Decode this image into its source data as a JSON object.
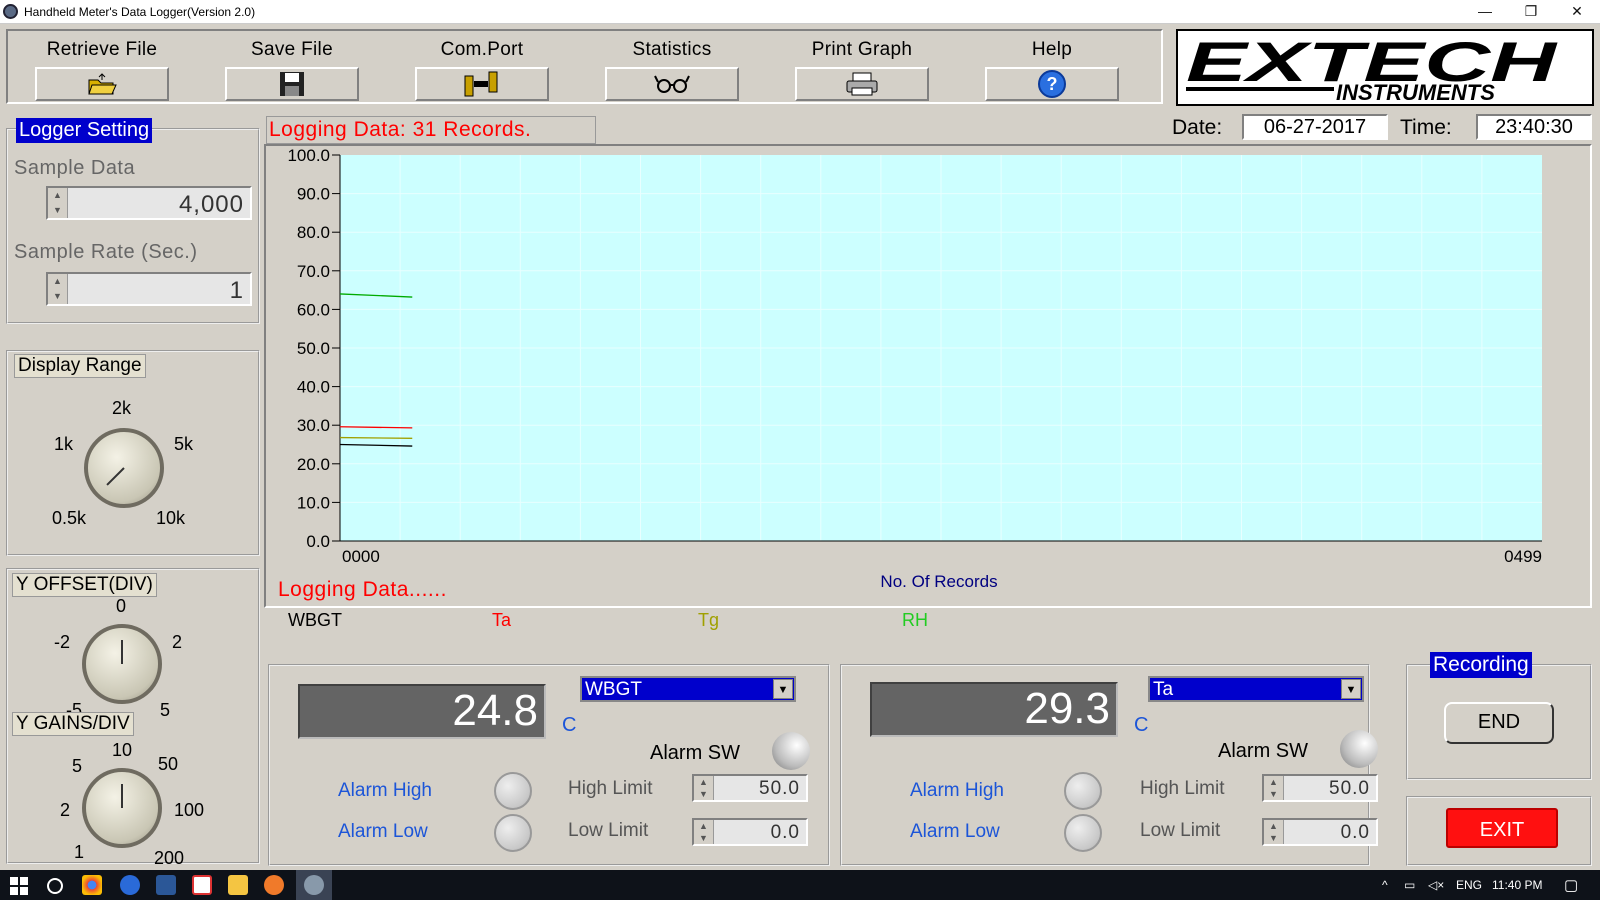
{
  "window": {
    "title": "Handheld Meter's Data Logger(Version 2.0)",
    "minimize": "—",
    "restore": "❐",
    "close": "✕"
  },
  "toolbar": {
    "retrieve": "Retrieve File",
    "save": "Save File",
    "comport": "Com.Port",
    "statistics": "Statistics",
    "print": "Print Graph",
    "help": "Help"
  },
  "logo": {
    "brand": "EXTECH",
    "sub": "INSTRUMENTS"
  },
  "logger": {
    "title": "Logger Setting",
    "sample_data_label": "Sample Data",
    "sample_data_value": "4,000",
    "sample_rate_label": "Sample Rate (Sec.)",
    "sample_rate_value": "1"
  },
  "display_range": {
    "title": "Display Range",
    "labels": [
      "2k",
      "1k",
      "5k",
      "0.5k",
      "10k"
    ]
  },
  "y_offset": {
    "title": "Y OFFSET(DIV)",
    "labels": [
      "0",
      "-2",
      "2",
      "-5",
      "5"
    ]
  },
  "y_gains": {
    "title": "Y GAINS/DIV",
    "labels": [
      "10",
      "5",
      "50",
      "2",
      "100",
      "1",
      "200"
    ]
  },
  "status": {
    "logging_head": "Logging Data: 31 Records.",
    "logging_body": "Logging Data......",
    "date_label": "Date:",
    "date_value": "06-27-2017",
    "time_label": "Time:",
    "time_value": "23:40:30"
  },
  "chart_data": {
    "type": "line",
    "xlabel": "No. Of Records",
    "x_tick_labels": [
      "0000",
      "0499"
    ],
    "xlim": [
      0,
      499
    ],
    "ylim": [
      0,
      100
    ],
    "y_ticks": [
      "100.0",
      "90.0",
      "80.0",
      "70.0",
      "60.0",
      "50.0",
      "40.0",
      "30.0",
      "20.0",
      "10.0",
      "0.0"
    ],
    "grid": true,
    "legend_position": "bottom",
    "series": [
      {
        "name": "WBGT",
        "color": "#000000",
        "x": [
          0,
          30
        ],
        "values": [
          25.0,
          24.6
        ]
      },
      {
        "name": "Ta",
        "color": "#ff0000",
        "x": [
          0,
          30
        ],
        "values": [
          29.6,
          29.3
        ]
      },
      {
        "name": "Tg",
        "color": "#a0a000",
        "x": [
          0,
          30
        ],
        "values": [
          26.8,
          26.6
        ]
      },
      {
        "name": "RH",
        "color": "#00aa00",
        "x": [
          0,
          30
        ],
        "values": [
          64.0,
          63.2
        ]
      }
    ]
  },
  "meter1": {
    "value": "24.8",
    "unit": "C",
    "select": "WBGT",
    "alarm_sw": "Alarm SW",
    "alarm_high": "Alarm High",
    "alarm_low": "Alarm Low",
    "high_limit_label": "High Limit",
    "high_limit": "50.0",
    "low_limit_label": "Low Limit",
    "low_limit": "0.0"
  },
  "meter2": {
    "value": "29.3",
    "unit": "C",
    "select": "Ta",
    "alarm_sw": "Alarm SW",
    "alarm_high": "Alarm High",
    "alarm_low": "Alarm Low",
    "high_limit_label": "High Limit",
    "high_limit": "50.0",
    "low_limit_label": "Low Limit",
    "low_limit": "0.0"
  },
  "recording": {
    "title": "Recording",
    "end": "END"
  },
  "exit": "EXIT",
  "taskbar": {
    "lang": "ENG",
    "time": "11:40 PM"
  }
}
